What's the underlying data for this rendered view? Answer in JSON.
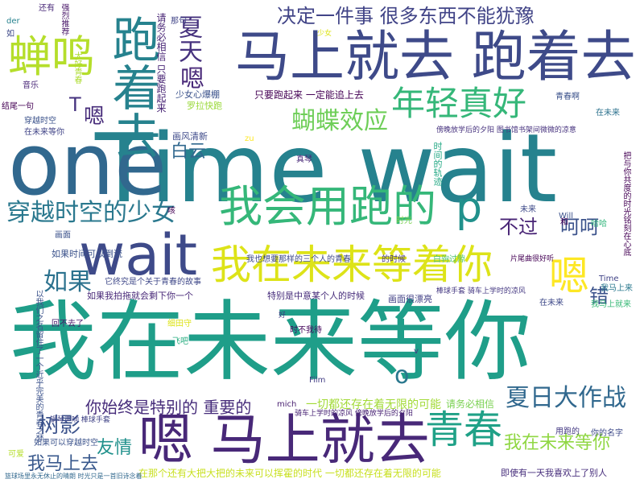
{
  "words": [
    {
      "text": "我在未来等你",
      "color": "#1f9e89"
    },
    {
      "text": "Time wait",
      "color": "#26828e"
    },
    {
      "text": "one",
      "color": "#31688e"
    },
    {
      "text": "马上就去 跑着去",
      "color": "#3e4a89"
    },
    {
      "text": "嗯 马上就去",
      "color": "#482878"
    },
    {
      "text": "跑着去",
      "color": "#26828e"
    },
    {
      "text": "蝉鸣",
      "color": "#b5de2b"
    },
    {
      "text": "我在未来等着你",
      "color": "#dde318"
    },
    {
      "text": "wait",
      "color": "#3e4a89"
    },
    {
      "text": "我会用跑的",
      "color": "#35b779"
    },
    {
      "text": "嗯",
      "color": "#fde725"
    },
    {
      "text": "青春",
      "color": "#1fa187"
    },
    {
      "text": "年轻真好",
      "color": "#35b779"
    },
    {
      "text": "穿越时空的少女",
      "color": "#2a788e"
    },
    {
      "text": "决定一件事 很多东西不能犹豫",
      "color": "#414487"
    },
    {
      "text": "夏日大作战",
      "color": "#31688e"
    },
    {
      "text": "蝴蝶效应",
      "color": "#6ece58"
    },
    {
      "text": "夏天",
      "color": "#46327e"
    },
    {
      "text": "如果",
      "color": "#2c728e"
    },
    {
      "text": "树影",
      "color": "#3b528b"
    },
    {
      "text": "我马上去",
      "color": "#38588c"
    },
    {
      "text": "友情",
      "color": "#21918c"
    },
    {
      "text": "我在未来等你",
      "color": "#90d743"
    },
    {
      "text": "呵呵",
      "color": "#3b528b"
    },
    {
      "text": "不过",
      "color": "#482475"
    },
    {
      "text": "p",
      "color": "#21918c"
    },
    {
      "text": "嗯",
      "color": "#482878"
    },
    {
      "text": "白云",
      "color": "#31688e"
    },
    {
      "text": "你始终是特别的 重要的",
      "color": "#472d7b"
    },
    {
      "text": "T",
      "color": "#46337f"
    },
    {
      "text": "嗯",
      "color": "#472c7a"
    },
    {
      "text": "错",
      "color": "#3b528b"
    },
    {
      "text": "o",
      "color": "#2a788e"
    },
    {
      "text": "一切都还存在着无限的可能",
      "color": "#a2da37"
    },
    {
      "text": "请务必相信",
      "color": "#7ad151"
    },
    {
      "text": "只要跑起来 一定能追上去",
      "color": "#440154"
    },
    {
      "text": "如果时间可以倒流",
      "color": "#3b528b"
    },
    {
      "text": "我也想要那样的三个人的青春",
      "color": "#3e4989"
    },
    {
      "text": "特别是中意某个人的时候",
      "color": "#472d7b"
    },
    {
      "text": "如果我拍拖就会剩下你一个",
      "color": "#482878"
    },
    {
      "text": "它终究是个关于青春的故事",
      "color": "#3f4889"
    },
    {
      "text": "在那个还有大把大把的未来可以挥霍的时代 一切都还存在着无限的可能",
      "color": "#c8e020"
    },
    {
      "text": "画面很漂亮",
      "color": "#424086"
    },
    {
      "text": "棒球手套 骑车上学时的凉风",
      "color": "#453882"
    },
    {
      "text": "骑车上学时的凉风 傍晚放学后的夕阳",
      "color": "#482374"
    },
    {
      "text": "片尾曲很好听",
      "color": "#440154"
    },
    {
      "text": "少女心爆棚",
      "color": "#3b528b"
    },
    {
      "text": "罗拉快跑",
      "color": "#9bd93c"
    },
    {
      "text": "请务必相信 只要跑起来",
      "color": "#482475"
    },
    {
      "text": "画风清新",
      "color": "#3e4a89"
    },
    {
      "text": "白驹过隙",
      "color": "#4ac16d"
    },
    {
      "text": "时间的轨迹",
      "color": "#22a884"
    },
    {
      "text": "青春啊",
      "color": "#3b528b"
    },
    {
      "text": "在未来",
      "color": "#2c728e"
    },
    {
      "text": "傍晚放学后的夕阳 图书馆书架间微微的凉意",
      "color": "#46327e"
    },
    {
      "text": "结尾一句",
      "color": "#440154"
    },
    {
      "text": "穿越时空",
      "color": "#3b528b"
    },
    {
      "text": "在未来等你",
      "color": "#414487"
    },
    {
      "text": "还有",
      "color": "#482878"
    },
    {
      "text": "音乐",
      "color": "#482677"
    },
    {
      "text": "大好青春",
      "color": "#addc30"
    },
    {
      "text": "回不去了",
      "color": "#48186a"
    },
    {
      "text": "如果可以穿越时空",
      "color": "#3b528b"
    },
    {
      "text": "钢琴声响 棒球手套",
      "color": "#414487"
    },
    {
      "text": "用跑的",
      "color": "#443983"
    },
    {
      "text": "你的名字",
      "color": "#3e4a89"
    },
    {
      "text": "即使有一天我喜欢上了别人",
      "color": "#472e7c"
    },
    {
      "text": "可爱",
      "color": "#b5de2b"
    },
    {
      "text": "细田守",
      "color": "#dde318"
    },
    {
      "text": "时不我待",
      "color": "#46085c"
    },
    {
      "text": "飞吧",
      "color": "#28ae80"
    },
    {
      "text": "我马上来",
      "color": "#2a788e"
    },
    {
      "text": "我马上就来",
      "color": "#38b977"
    },
    {
      "text": "Time",
      "color": "#414487"
    },
    {
      "text": "未来",
      "color": "#3e4a89"
    },
    {
      "text": "和",
      "color": "#440154"
    },
    {
      "text": "哈哈",
      "color": "#31b57b"
    },
    {
      "text": "Will",
      "color": "#3b528b"
    },
    {
      "text": "Film",
      "color": "#433e85"
    },
    {
      "text": "mich",
      "color": "#481f70"
    },
    {
      "text": "der",
      "color": "#26828e"
    },
    {
      "text": "如",
      "color": "#3e4989"
    },
    {
      "text": "画面",
      "color": "#3b528b"
    },
    {
      "text": "咳",
      "color": "#440154"
    },
    {
      "text": "zu",
      "color": "#fde725"
    },
    {
      "text": "真琴",
      "color": "#482878"
    },
    {
      "text": "那句",
      "color": "#414487"
    },
    {
      "text": "强烈推荐",
      "color": "#481668"
    },
    {
      "text": "少女",
      "color": "#dde318"
    },
    {
      "text": "好",
      "color": "#433d84"
    },
    {
      "text": "v",
      "color": "#443a83"
    },
    {
      "text": "的时候",
      "color": "#453581"
    },
    {
      "text": "在未来",
      "color": "#3e4989"
    },
    {
      "text": "时光",
      "color": "#7ad151"
    },
    {
      "text": "把与你共度的时光铭刻在心底",
      "color": "#440154"
    },
    {
      "text": "以我们之名留住了一个近乎完美的青春之梦",
      "color": "#3b528b"
    },
    {
      "text": "篮球场里永无休止的晴朗 时光只是一首旧诗念着",
      "color": "#31688e"
    }
  ]
}
